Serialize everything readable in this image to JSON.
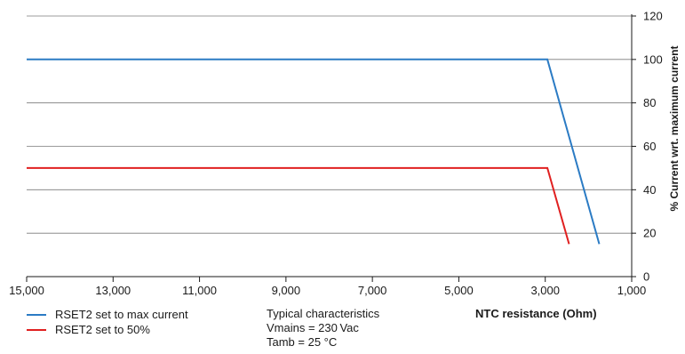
{
  "chart_data": {
    "type": "line",
    "xlabel": "NTC resistance (Ohm)",
    "ylabel": "% Current wrt. maximum current",
    "xlim": [
      15000,
      1000
    ],
    "ylim": [
      0,
      120
    ],
    "x_ticks": [
      "15,000",
      "13,000",
      "11,000",
      "9,000",
      "7,000",
      "5,000",
      "3,000",
      "1,000"
    ],
    "y_ticks": [
      "0",
      "20",
      "40",
      "60",
      "80",
      "100",
      "120"
    ],
    "grid": "horizontal",
    "y_axis_position": "right",
    "series": [
      {
        "name": "RSET2 set to max current",
        "color": "#2b7bc4",
        "points": [
          [
            15000,
            100
          ],
          [
            2950,
            100
          ],
          [
            1750,
            15
          ]
        ]
      },
      {
        "name": "RSET2 set to 50%",
        "color": "#e02020",
        "points": [
          [
            15000,
            50
          ],
          [
            2950,
            50
          ],
          [
            2450,
            15
          ]
        ]
      }
    ],
    "annotations": [
      "Typical characteristics",
      "Vmains = 230 Vac",
      "Tamb = 25 °C"
    ]
  }
}
